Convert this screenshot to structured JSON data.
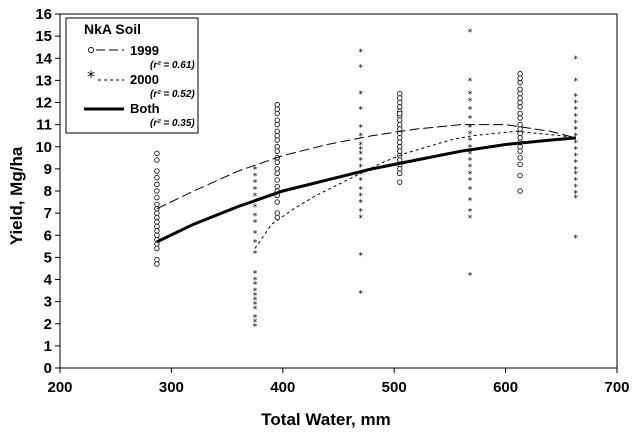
{
  "chart_data": {
    "type": "scatter",
    "title": "",
    "xlabel": "Total Water, mm",
    "ylabel": "Yield, Mg/ha",
    "xlim": [
      200,
      700
    ],
    "ylim": [
      0,
      16
    ],
    "xticks": [
      "200",
      "300",
      "400",
      "500",
      "600",
      "700"
    ],
    "yticks": [
      "0",
      "1",
      "2",
      "3",
      "4",
      "5",
      "6",
      "7",
      "8",
      "9",
      "10",
      "11",
      "12",
      "13",
      "14",
      "15",
      "16"
    ],
    "grid": false,
    "legend": {
      "title": "NkA Soil",
      "placement": "top-left",
      "entries": [
        {
          "label": "1999",
          "r2": "(r² = 0.61)"
        },
        {
          "label": "2000",
          "r2": "(r² = 0.52)"
        },
        {
          "label": "Both",
          "r2": "(r² = 0.35)"
        }
      ]
    },
    "series": [
      {
        "name": "1999",
        "marker": "circle",
        "x": [
          287,
          287,
          287,
          287,
          287,
          287,
          287,
          287,
          287,
          287,
          287,
          287,
          287,
          287,
          287,
          287,
          287,
          287,
          287,
          287,
          395,
          395,
          395,
          395,
          395,
          395,
          395,
          395,
          395,
          395,
          395,
          395,
          395,
          395,
          395,
          395,
          395,
          395,
          395,
          395,
          395,
          505,
          505,
          505,
          505,
          505,
          505,
          505,
          505,
          505,
          505,
          505,
          505,
          505,
          505,
          505,
          505,
          505,
          505,
          505,
          505,
          505,
          613,
          613,
          613,
          613,
          613,
          613,
          613,
          613,
          613,
          613,
          613,
          613,
          613,
          613,
          613,
          613,
          613,
          613,
          613,
          613,
          613
        ],
        "y": [
          9.7,
          9.4,
          8.9,
          8.6,
          8.3,
          8.0,
          7.7,
          7.4,
          7.2,
          7.0,
          6.8,
          6.6,
          6.4,
          6.2,
          6.0,
          5.8,
          5.6,
          5.4,
          4.9,
          4.7,
          11.9,
          11.7,
          11.5,
          11.2,
          11.0,
          10.7,
          10.5,
          10.3,
          10.0,
          9.8,
          9.5,
          9.3,
          9.0,
          8.8,
          8.5,
          8.2,
          8.0,
          7.8,
          7.5,
          7.0,
          6.8,
          12.4,
          12.2,
          12.0,
          11.8,
          11.6,
          11.4,
          11.2,
          11.0,
          10.8,
          10.6,
          10.4,
          10.2,
          10.0,
          9.8,
          9.6,
          9.4,
          9.2,
          9.0,
          8.8,
          8.4,
          11.5,
          13.3,
          13.1,
          12.9,
          12.6,
          12.4,
          12.2,
          12.0,
          11.8,
          11.5,
          11.3,
          11.0,
          10.8,
          10.6,
          10.4,
          10.2,
          10.0,
          9.8,
          9.5,
          9.2,
          8.7,
          8.0
        ]
      },
      {
        "name": "2000",
        "marker": "star",
        "x": [
          375,
          375,
          375,
          375,
          375,
          375,
          375,
          375,
          375,
          375,
          375,
          375,
          375,
          375,
          375,
          375,
          375,
          375,
          375,
          375,
          375,
          375,
          470,
          470,
          470,
          470,
          470,
          470,
          470,
          470,
          470,
          470,
          470,
          470,
          470,
          470,
          470,
          470,
          470,
          470,
          470,
          470,
          568,
          568,
          568,
          568,
          568,
          568,
          568,
          568,
          568,
          568,
          568,
          568,
          568,
          568,
          568,
          568,
          568,
          568,
          568,
          568,
          663,
          663,
          663,
          663,
          663,
          663,
          663,
          663,
          663,
          663,
          663,
          663,
          663,
          663,
          663,
          663,
          663,
          663,
          663,
          663
        ],
        "y": [
          9.0,
          8.7,
          8.4,
          8.1,
          7.8,
          7.3,
          6.9,
          6.6,
          6.1,
          5.7,
          5.2,
          4.3,
          4.0,
          3.8,
          3.5,
          3.3,
          3.1,
          2.9,
          2.7,
          2.3,
          2.1,
          1.9,
          14.3,
          13.6,
          12.4,
          11.7,
          10.9,
          10.5,
          10.1,
          9.7,
          9.4,
          9.1,
          8.8,
          8.5,
          8.1,
          7.8,
          7.5,
          7.1,
          6.8,
          5.1,
          3.4,
          9.9,
          15.2,
          13.0,
          12.1,
          11.7,
          11.3,
          10.9,
          10.6,
          10.3,
          10.0,
          9.7,
          9.4,
          9.1,
          8.8,
          8.5,
          8.1,
          7.6,
          7.1,
          6.8,
          4.2,
          12.4,
          14.0,
          13.0,
          12.3,
          12.0,
          11.7,
          11.4,
          11.1,
          10.8,
          10.5,
          10.2,
          9.9,
          9.6,
          9.3,
          9.0,
          8.8,
          8.5,
          8.2,
          7.9,
          7.7,
          5.9
        ]
      }
    ],
    "curves": [
      {
        "name": "1999",
        "style": "long-dash",
        "x": [
          287,
          320,
          360,
          400,
          440,
          480,
          520,
          560,
          600,
          640,
          663
        ],
        "y": [
          7.2,
          8.0,
          8.9,
          9.6,
          10.1,
          10.5,
          10.8,
          11.0,
          11.0,
          10.7,
          10.4
        ]
      },
      {
        "name": "2000",
        "style": "short-dash",
        "x": [
          375,
          390,
          410,
          430,
          450,
          470,
          490,
          510,
          530,
          550,
          570,
          590,
          610,
          630,
          650,
          663
        ],
        "y": [
          5.4,
          6.5,
          7.2,
          7.8,
          8.3,
          8.8,
          9.3,
          9.7,
          10.0,
          10.3,
          10.5,
          10.6,
          10.7,
          10.6,
          10.5,
          10.4
        ]
      },
      {
        "name": "Both",
        "style": "solid-thick",
        "x": [
          287,
          320,
          360,
          400,
          440,
          480,
          520,
          560,
          600,
          640,
          663
        ],
        "y": [
          5.7,
          6.5,
          7.3,
          8.0,
          8.5,
          9.0,
          9.4,
          9.8,
          10.1,
          10.3,
          10.4
        ]
      }
    ]
  }
}
